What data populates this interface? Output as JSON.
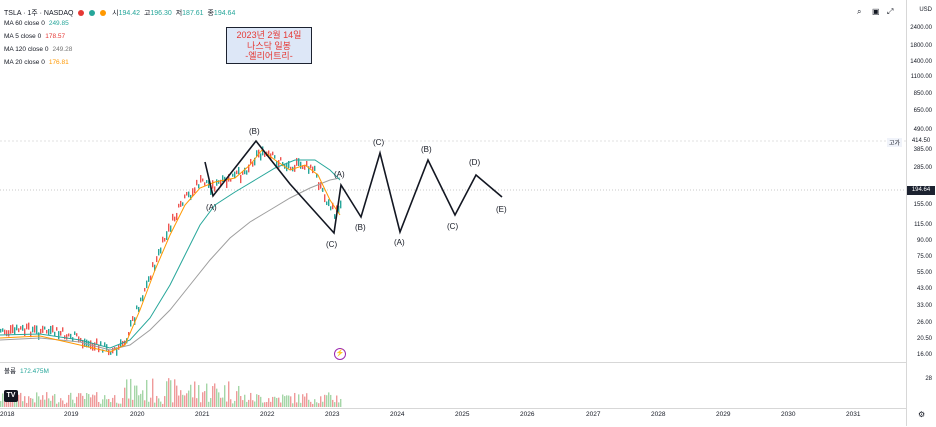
{
  "symbol": {
    "name": "TSLA · 1주 · NASDAQ",
    "open_label": "시",
    "open": "194.42",
    "high_label": "고",
    "high": "196.30",
    "low_label": "저",
    "low": "187.61",
    "close_label": "종",
    "close": "194.64"
  },
  "indicators": [
    {
      "label": "MA 60 close 0",
      "value": "249.85",
      "color": "#26a69a"
    },
    {
      "label": "MA 5 close 0",
      "value": "178.57",
      "color": "#e53935"
    },
    {
      "label": "MA 120 close 0",
      "value": "249.28",
      "color": "#757575"
    },
    {
      "label": "MA 20 close 0",
      "value": "176.81",
      "color": "#ff9800"
    }
  ],
  "annotation": {
    "line1": "2023년 2월 14일",
    "line2": "나스닥 일봉",
    "line3": "-엘리어트리-"
  },
  "price_axis": {
    "currency": "USD",
    "ticks": [
      "2400.00",
      "1800.00",
      "1400.00",
      "1100.00",
      "850.00",
      "650.00",
      "490.00",
      "385.00",
      "285.00",
      "155.00",
      "115.00",
      "90.00",
      "75.00",
      "55.00",
      "43.00",
      "33.00",
      "26.00",
      "20.50",
      "16.00"
    ],
    "last_price": "194.64",
    "high_tag": "고가",
    "high_value": "414.50"
  },
  "time_axis": [
    "2018",
    "2019",
    "2020",
    "2021",
    "2022",
    "2023",
    "2024",
    "2025",
    "2026",
    "2027",
    "2028",
    "2029",
    "2030",
    "2031"
  ],
  "volume": {
    "label": "볼륨",
    "value": "172.475M",
    "axis_tick": "28"
  },
  "wave_labels": [
    "(A)",
    "(B)",
    "(C)",
    "(A)",
    "(B)",
    "(C)",
    "(A)",
    "(B)",
    "(C)",
    "(D)",
    "(E)"
  ]
}
